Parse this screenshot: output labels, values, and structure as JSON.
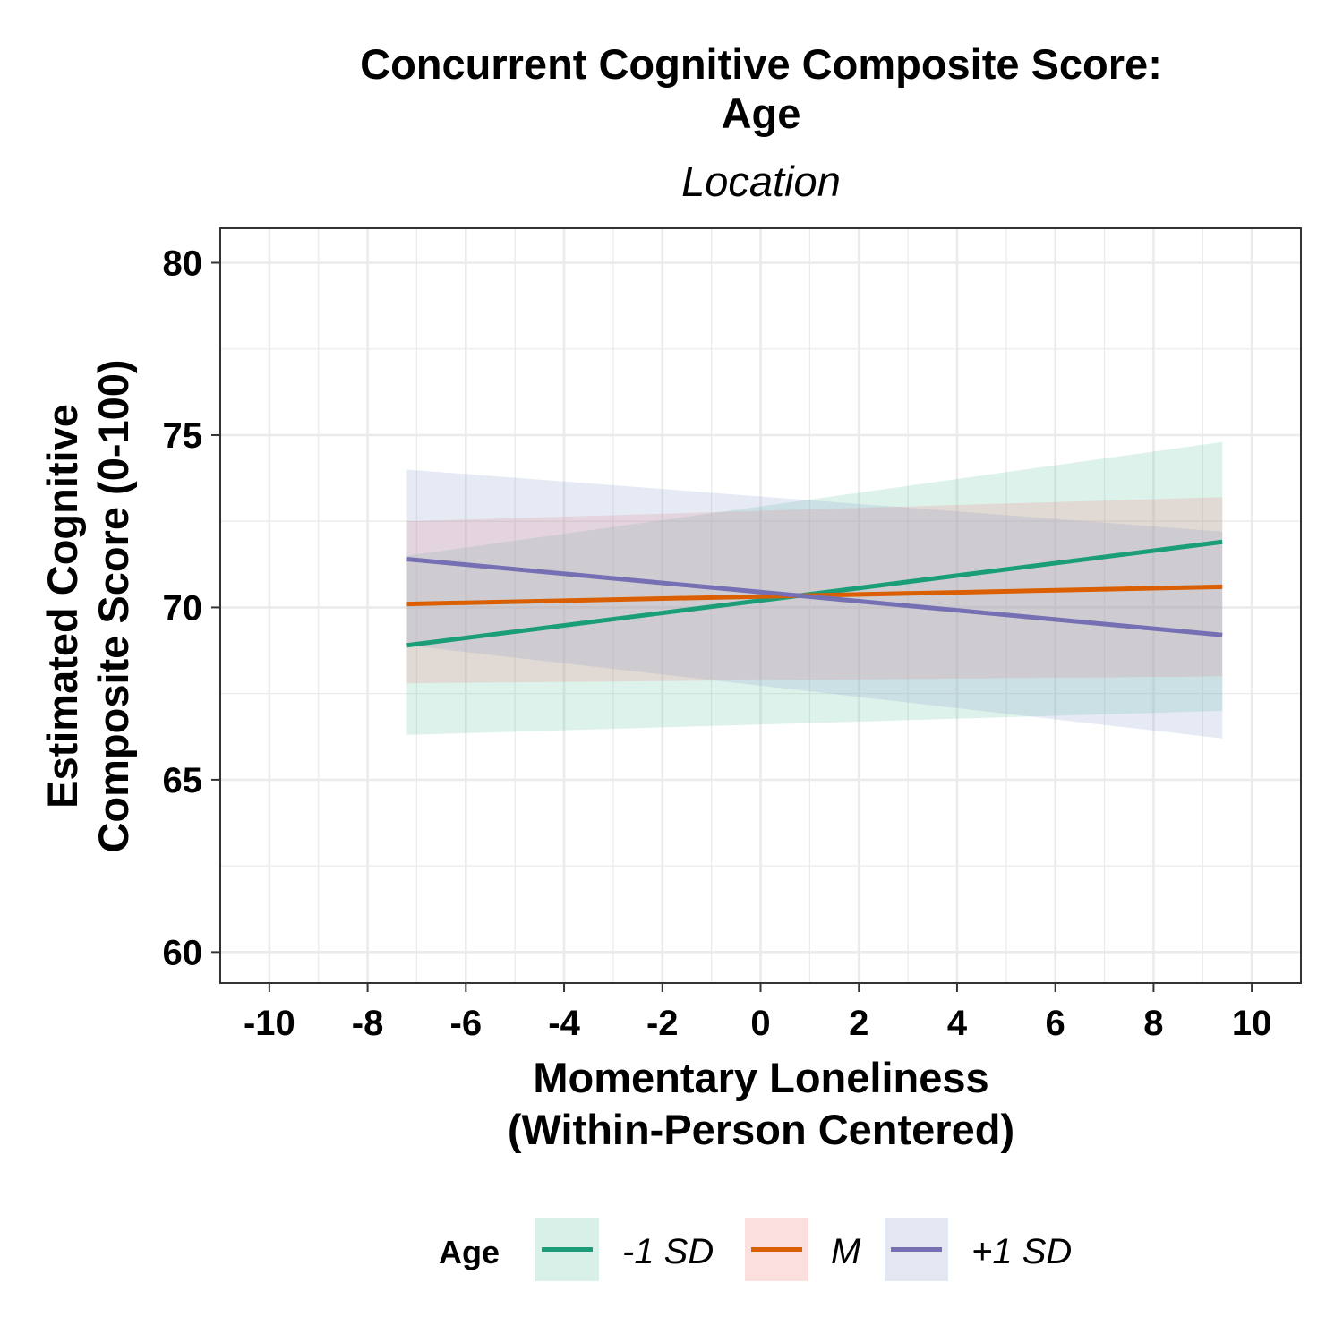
{
  "chart_data": {
    "type": "line",
    "title_line1": "Concurrent Cognitive Composite Score:",
    "title_line2": "Age",
    "subtitle": "Location",
    "xlabel_line1": "Momentary Loneliness",
    "xlabel_line2": "(Within-Person Centered)",
    "ylabel_line1": "Estimated Cognitive",
    "ylabel_line2": "Composite Score (0-100)",
    "xlim": [
      -11,
      11
    ],
    "ylim": [
      59.1,
      81
    ],
    "x_ticks": [
      -10,
      -8,
      -6,
      -4,
      -2,
      0,
      2,
      4,
      6,
      8,
      10
    ],
    "x_tick_labels": [
      "-10",
      "-8",
      "-6",
      "-4",
      "-2",
      "0",
      "2",
      "4",
      "6",
      "8",
      "10"
    ],
    "y_ticks": [
      60,
      65,
      70,
      75,
      80
    ],
    "y_tick_labels": [
      "60",
      "65",
      "70",
      "75",
      "80"
    ],
    "grid": true,
    "legend_position": "bottom",
    "legend_title": "Age",
    "series": [
      {
        "name": "-1 SD",
        "line_color": "#1b9e77",
        "band_color": "#66c2a5",
        "x": [
          -7.2,
          9.4
        ],
        "y": [
          68.9,
          71.9
        ],
        "lower": [
          66.3,
          67.0
        ],
        "upper": [
          71.5,
          74.8
        ]
      },
      {
        "name": "M",
        "line_color": "#d95f02",
        "band_color": "#f08080",
        "x": [
          -7.2,
          9.4
        ],
        "y": [
          70.1,
          70.6
        ],
        "lower": [
          67.8,
          68.0
        ],
        "upper": [
          72.5,
          73.2
        ]
      },
      {
        "name": "+1 SD",
        "line_color": "#7570b3",
        "band_color": "#8da0cb",
        "x": [
          -7.2,
          9.4
        ],
        "y": [
          71.4,
          69.2
        ],
        "lower": [
          68.9,
          66.2
        ],
        "upper": [
          74.0,
          72.2
        ]
      }
    ]
  }
}
